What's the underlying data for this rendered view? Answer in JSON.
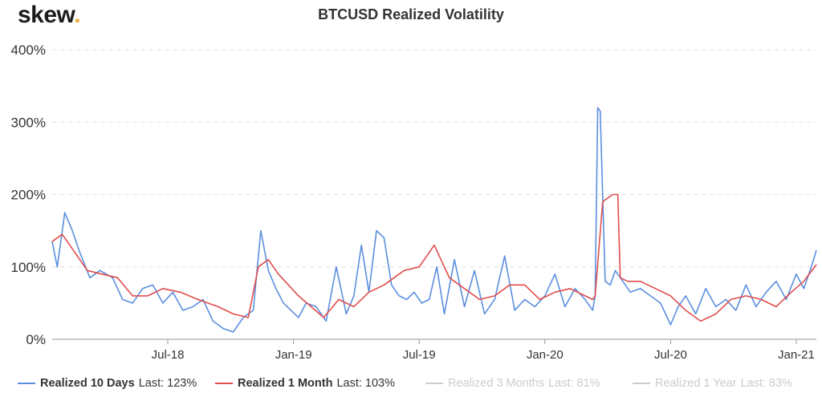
{
  "brand": {
    "text": "skew",
    "dot": "."
  },
  "chart_data": {
    "type": "line",
    "title": "BTCUSD Realized Volatility",
    "ylim": [
      0,
      400
    ],
    "y_ticks": [
      "0%",
      "100%",
      "200%",
      "300%",
      "400%"
    ],
    "y_tick_values": [
      0,
      100,
      200,
      300,
      400
    ],
    "x_ticks": [
      "Jul-18",
      "Jan-19",
      "Jul-19",
      "Jan-20",
      "Jul-20",
      "Jan-21"
    ],
    "x_tick_positions": [
      2018.5,
      2019.0,
      2019.5,
      2020.0,
      2020.5,
      2021.0
    ],
    "xlim": [
      2018.04,
      2021.08
    ],
    "grid": "horizontal dashed",
    "legend_position": "bottom",
    "series": [
      {
        "name": "Realized 10 Days",
        "last": "Last: 123%",
        "color": "#5b8fdf",
        "visible": true,
        "x": [
          2018.04,
          2018.06,
          2018.09,
          2018.12,
          2018.15,
          2018.19,
          2018.23,
          2018.28,
          2018.32,
          2018.36,
          2018.4,
          2018.44,
          2018.48,
          2018.52,
          2018.56,
          2018.6,
          2018.64,
          2018.68,
          2018.72,
          2018.76,
          2018.8,
          2018.84,
          2018.87,
          2018.9,
          2018.93,
          2018.96,
          2018.99,
          2019.02,
          2019.05,
          2019.09,
          2019.13,
          2019.17,
          2019.21,
          2019.24,
          2019.27,
          2019.3,
          2019.33,
          2019.36,
          2019.39,
          2019.42,
          2019.45,
          2019.48,
          2019.51,
          2019.54,
          2019.57,
          2019.6,
          2019.64,
          2019.68,
          2019.72,
          2019.76,
          2019.8,
          2019.84,
          2019.88,
          2019.92,
          2019.96,
          2020.0,
          2020.04,
          2020.08,
          2020.12,
          2020.16,
          2020.19,
          2020.2,
          2020.21,
          2020.22,
          2020.24,
          2020.26,
          2020.28,
          2020.31,
          2020.34,
          2020.38,
          2020.42,
          2020.46,
          2020.5,
          2020.53,
          2020.56,
          2020.6,
          2020.64,
          2020.68,
          2020.72,
          2020.76,
          2020.8,
          2020.84,
          2020.88,
          2020.92,
          2020.96,
          2021.0,
          2021.03,
          2021.06,
          2021.08
        ],
        "values": [
          135,
          100,
          175,
          150,
          120,
          85,
          95,
          85,
          55,
          50,
          70,
          75,
          50,
          65,
          40,
          45,
          55,
          25,
          15,
          10,
          30,
          40,
          150,
          95,
          70,
          50,
          40,
          30,
          50,
          45,
          25,
          100,
          35,
          60,
          130,
          65,
          150,
          140,
          75,
          60,
          55,
          65,
          50,
          55,
          100,
          35,
          110,
          45,
          95,
          35,
          55,
          115,
          40,
          55,
          45,
          60,
          90,
          45,
          70,
          55,
          40,
          60,
          320,
          315,
          80,
          75,
          95,
          80,
          65,
          70,
          60,
          50,
          20,
          45,
          60,
          35,
          70,
          45,
          55,
          40,
          75,
          45,
          65,
          80,
          55,
          90,
          70,
          100,
          123
        ]
      },
      {
        "name": "Realized 1 Month",
        "last": "Last: 103%",
        "color": "#e04c4c",
        "visible": true,
        "x": [
          2018.04,
          2018.08,
          2018.13,
          2018.18,
          2018.24,
          2018.3,
          2018.36,
          2018.42,
          2018.48,
          2018.55,
          2018.62,
          2018.7,
          2018.76,
          2018.82,
          2018.86,
          2018.9,
          2018.94,
          2018.98,
          2019.02,
          2019.07,
          2019.12,
          2019.18,
          2019.24,
          2019.3,
          2019.36,
          2019.4,
          2019.44,
          2019.5,
          2019.56,
          2019.62,
          2019.68,
          2019.74,
          2019.8,
          2019.86,
          2019.92,
          2019.98,
          2020.04,
          2020.1,
          2020.16,
          2020.19,
          2020.2,
          2020.23,
          2020.27,
          2020.29,
          2020.3,
          2020.33,
          2020.38,
          2020.44,
          2020.5,
          2020.56,
          2020.62,
          2020.68,
          2020.74,
          2020.8,
          2020.86,
          2020.92,
          2020.98,
          2021.03,
          2021.08
        ],
        "values": [
          135,
          145,
          120,
          95,
          90,
          85,
          60,
          60,
          70,
          65,
          55,
          45,
          35,
          30,
          100,
          110,
          90,
          75,
          60,
          45,
          30,
          55,
          45,
          65,
          75,
          85,
          95,
          100,
          130,
          85,
          70,
          55,
          60,
          75,
          75,
          55,
          65,
          70,
          60,
          55,
          60,
          190,
          200,
          200,
          85,
          80,
          80,
          70,
          60,
          40,
          25,
          35,
          55,
          60,
          55,
          45,
          65,
          80,
          103
        ]
      },
      {
        "name": "Realized 3 Months",
        "last": "Last: 81%",
        "color": "#cccccc",
        "visible": false
      },
      {
        "name": "Realized 1 Year",
        "last": "Last: 83%",
        "color": "#cccccc",
        "visible": false
      }
    ]
  }
}
